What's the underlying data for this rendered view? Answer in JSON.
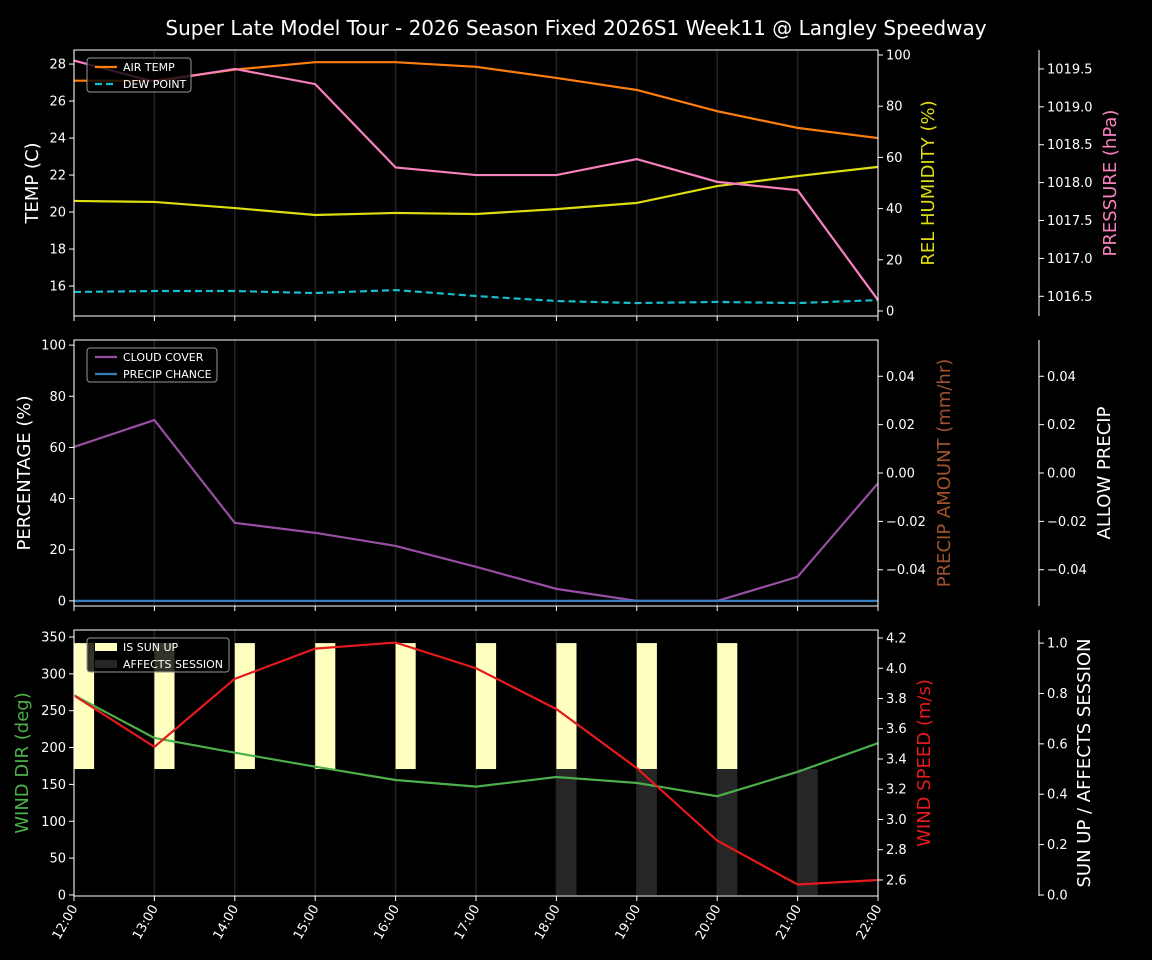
{
  "title": "Super Late Model Tour - 2026 Season Fixed 2026S1 Week11 @ Langley Speedway",
  "chart_data": [
    {
      "type": "line",
      "x": [
        "12:00",
        "13:00",
        "14:00",
        "15:00",
        "16:00",
        "17:00",
        "18:00",
        "19:00",
        "20:00",
        "21:00",
        "22:00"
      ],
      "grid": "vertical",
      "legend_placement": "upper-left",
      "axes": [
        {
          "id": "temp",
          "side": "left",
          "label": "TEMP (C)",
          "color": "#ffffff",
          "ylim": [
            14.38,
            28.76
          ],
          "ticks": [
            16,
            18,
            20,
            22,
            24,
            26,
            28
          ]
        },
        {
          "id": "hum",
          "side": "right",
          "label": "REL HUMIDITY (%)",
          "color": "#dddd11",
          "ylim": [
            -1.95,
            101.95
          ],
          "ticks": [
            0,
            20,
            40,
            60,
            80,
            100
          ]
        },
        {
          "id": "pres",
          "side": "far-right",
          "label": "PRESSURE (hPa)",
          "color": "#f781bf",
          "ylim": [
            1016.24,
            1019.75
          ],
          "ticks": [
            "1016.5",
            "1017.0",
            "1017.5",
            "1018.0",
            "1018.5",
            "1019.0",
            "1019.5"
          ]
        }
      ],
      "series": [
        {
          "name": "AIR TEMP",
          "axis": "temp",
          "color": "#ff7f0e",
          "dashed": false,
          "legend": true,
          "values": [
            27.1,
            27.1,
            27.7,
            28.1,
            28.1,
            27.85,
            27.25,
            26.6,
            25.45,
            24.55,
            24.0
          ]
        },
        {
          "name": "DEW POINT",
          "axis": "temp",
          "color": "#17becf",
          "dashed": true,
          "legend": true,
          "values": [
            15.68,
            15.73,
            15.73,
            15.62,
            15.78,
            15.46,
            15.19,
            15.08,
            15.14,
            15.08,
            15.24
          ]
        },
        {
          "axis": "hum",
          "color": "#dddd11",
          "dashed": false,
          "legend": false,
          "values": [
            43.0,
            42.6,
            40.2,
            37.5,
            38.3,
            37.9,
            39.8,
            42.2,
            48.8,
            52.7,
            56.3
          ]
        },
        {
          "axis": "pres",
          "color": "#f781bf",
          "dashed": false,
          "legend": false,
          "values": [
            1019.61,
            1019.33,
            1019.5,
            1019.3,
            1018.2,
            1018.1,
            1018.1,
            1018.31,
            1018.01,
            1017.9,
            1016.45
          ]
        }
      ]
    },
    {
      "type": "line",
      "x": [
        "12:00",
        "13:00",
        "14:00",
        "15:00",
        "16:00",
        "17:00",
        "18:00",
        "19:00",
        "20:00",
        "21:00",
        "22:00"
      ],
      "grid": "vertical",
      "legend_placement": "upper-left",
      "axes": [
        {
          "id": "pct",
          "side": "left",
          "label": "PERCENTAGE (%)",
          "color": "#ffffff",
          "ylim": [
            -2,
            102
          ],
          "ticks": [
            0,
            20,
            40,
            60,
            80,
            100
          ]
        },
        {
          "id": "pamt",
          "side": "right",
          "label": "PRECIP AMOUNT (mm/hr)",
          "color": "#a0522d",
          "ylim": [
            -0.055,
            0.055
          ],
          "ticks": [
            "−0.04",
            "−0.02",
            "0.00",
            "0.02",
            "0.04"
          ]
        },
        {
          "id": "allow",
          "side": "far-right",
          "label": "ALLOW PRECIP",
          "color": "#ffffff",
          "ylim": [
            -0.055,
            0.055
          ],
          "ticks": [
            "−0.04",
            "−0.02",
            "0.00",
            "0.02",
            "0.04"
          ]
        }
      ],
      "series": [
        {
          "name": "CLOUD COVER",
          "axis": "pct",
          "color": "#984ea3",
          "dashed": false,
          "legend": true,
          "values": [
            60.2,
            70.7,
            30.5,
            26.6,
            21.5,
            13.3,
            4.7,
            0,
            0,
            9.4,
            46
          ]
        },
        {
          "name": "PRECIP CHANCE",
          "axis": "pct",
          "color": "#377eb8",
          "dashed": false,
          "legend": true,
          "values": [
            0,
            0,
            0,
            0,
            0,
            0,
            0,
            0,
            0,
            0,
            0
          ]
        }
      ]
    },
    {
      "type": "line",
      "x": [
        "12:00",
        "13:00",
        "14:00",
        "15:00",
        "16:00",
        "17:00",
        "18:00",
        "19:00",
        "20:00",
        "21:00",
        "22:00"
      ],
      "grid": "vertical",
      "legend_placement": "upper-left",
      "axes": [
        {
          "id": "wdir",
          "side": "left",
          "label": "WIND DIR (deg)",
          "color": "#4daf4a",
          "ylim": [
            -1.4,
            359.5
          ],
          "ticks": [
            0,
            50,
            100,
            150,
            200,
            250,
            300,
            350
          ]
        },
        {
          "id": "wspd",
          "side": "right",
          "label": "WIND SPEED (m/s)",
          "color": "#e41a1c",
          "ylim": [
            2.494,
            4.253
          ],
          "ticks": [
            "2.6",
            "2.8",
            "3.0",
            "3.2",
            "3.4",
            "3.6",
            "3.8",
            "4.0",
            "4.2"
          ]
        },
        {
          "id": "sun",
          "side": "far-right",
          "label": "SUN UP / AFFECTS SESSION",
          "color": "#ffffff",
          "ylim": [
            -0.004,
            1.052
          ],
          "ticks": [
            "0.0",
            "0.2",
            "0.4",
            "0.6",
            "0.8",
            "1.0"
          ]
        }
      ],
      "bars": [
        {
          "name": "IS SUN UP",
          "axis": "sun",
          "color": "#ffffc0",
          "values": [
            1,
            1,
            1,
            1,
            1,
            1,
            1,
            1,
            1,
            0,
            0
          ]
        },
        {
          "name": "AFFECTS SESSION",
          "axis": "sun",
          "color": "#262626",
          "values": [
            0,
            0,
            0,
            0,
            0,
            0,
            1,
            1,
            1,
            1,
            0
          ]
        }
      ],
      "series": [
        {
          "axis": "wdir",
          "color": "#4daf4a",
          "dashed": false,
          "legend": false,
          "values": [
            271,
            213,
            193,
            174,
            156,
            147,
            160,
            152,
            134,
            167,
            206
          ]
        },
        {
          "axis": "wspd",
          "color": "#e41a1c",
          "dashed": false,
          "legend": false,
          "values": [
            3.82,
            3.48,
            3.93,
            4.13,
            4.17,
            4.0,
            3.73,
            3.34,
            2.86,
            2.57,
            2.6
          ]
        }
      ]
    }
  ]
}
